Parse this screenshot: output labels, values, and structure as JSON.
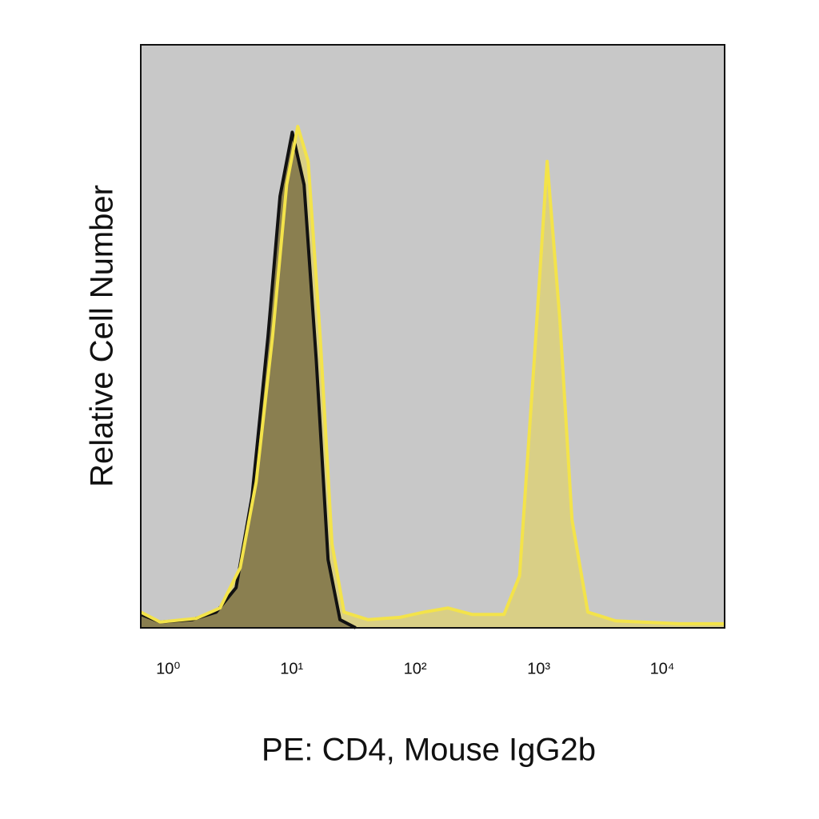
{
  "chart_data": {
    "type": "area",
    "x_label": "PE: CD4, Mouse IgG2b",
    "y_label": "Relative Cell Number",
    "xscale": "log",
    "xlim": [
      0.6,
      32000
    ],
    "ylim": [
      0,
      100
    ],
    "xticks": [
      {
        "value": 1,
        "label": "10⁰"
      },
      {
        "value": 10,
        "label": "10¹"
      },
      {
        "value": 100,
        "label": "10²"
      },
      {
        "value": 1000,
        "label": "10³"
      },
      {
        "value": 10000,
        "label": "10⁴"
      }
    ],
    "series": [
      {
        "color": "#f3e34a",
        "fill": "#d9cf86",
        "x": [
          0.6,
          0.86,
          1.68,
          2.63,
          3.83,
          5.16,
          7.0,
          9.1,
          11.2,
          13.6,
          17,
          21.2,
          26.5,
          41.5,
          75,
          118,
          184,
          288,
          524,
          700,
          920,
          1170,
          1480,
          1860,
          2500,
          4200,
          13700,
          32000
        ],
        "values": [
          2.7,
          1,
          1.6,
          3.4,
          10.3,
          25,
          50,
          76,
          86,
          80,
          50,
          14.4,
          2.7,
          1.4,
          1.8,
          2.7,
          3.4,
          2.3,
          2.3,
          8.9,
          46,
          80,
          53,
          18.5,
          2.7,
          1.2,
          0.7,
          0.7
        ]
      },
      {
        "color": "#111111",
        "fill": "#8a7f50",
        "x": [
          0.6,
          0.86,
          1.56,
          2.45,
          3.55,
          4.78,
          6.43,
          8.05,
          10.1,
          12.6,
          15.8,
          19.7,
          24.6,
          33
        ],
        "values": [
          2.3,
          1,
          1.4,
          2.7,
          6.9,
          22.6,
          50,
          74,
          85,
          76,
          46,
          11.7,
          1.4,
          0
        ]
      }
    ]
  }
}
